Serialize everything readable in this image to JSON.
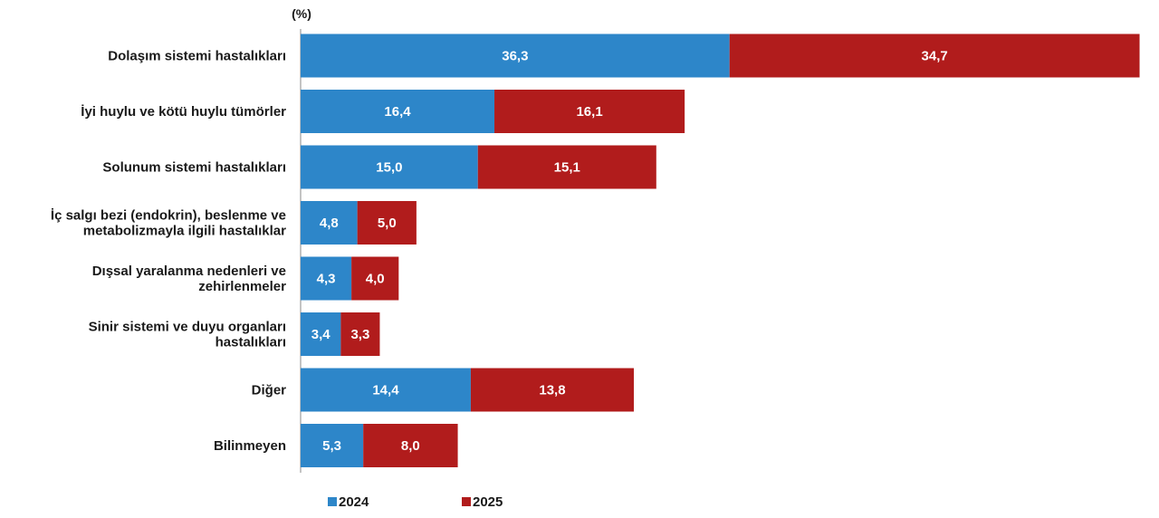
{
  "chart_data": {
    "type": "bar",
    "orientation": "horizontal",
    "stacked": true,
    "unit_label": "(%)",
    "categories": [
      [
        "Dolaşım sistemi hastalıkları"
      ],
      [
        "İyi huylu ve kötü huylu tümörler"
      ],
      [
        "Solunum sistemi hastalıkları"
      ],
      [
        "İç salgı bezi (endokrin), beslenme ve",
        "metabolizmayla ilgili hastalıklar"
      ],
      [
        "Dışsal yaralanma nedenleri ve",
        "zehirlenmeler"
      ],
      [
        "Sinir sistemi ve duyu organları",
        "hastalıkları"
      ],
      [
        "Diğer"
      ],
      [
        "Bilinmeyen"
      ]
    ],
    "series": [
      {
        "name": "2024",
        "color": "#2d86c9",
        "values": [
          36.3,
          16.4,
          15.0,
          4.8,
          4.3,
          3.4,
          14.4,
          5.3
        ],
        "labels": [
          "36,3",
          "16,4",
          "15,0",
          "4,8",
          "4,3",
          "3,4",
          "14,4",
          "5,3"
        ]
      },
      {
        "name": "2025",
        "color": "#b11c1c",
        "values": [
          34.7,
          16.1,
          15.1,
          5.0,
          4.0,
          3.3,
          13.8,
          8.0
        ],
        "labels": [
          "34,7",
          "16,1",
          "15,1",
          "5,0",
          "4,0",
          "3,3",
          "13,8",
          "8,0"
        ]
      }
    ],
    "legend_position": "bottom-left",
    "grid": false
  }
}
